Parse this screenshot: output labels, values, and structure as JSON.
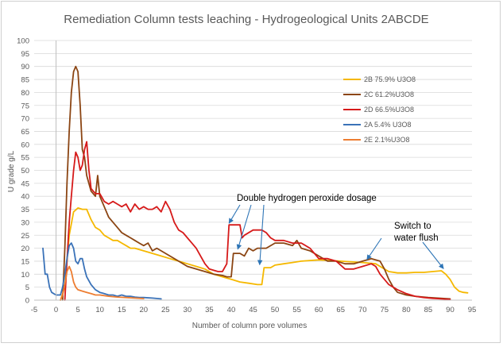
{
  "chart_data": {
    "type": "line",
    "title": "Remediation Column tests leaching - Hydrogeological Units 2ABCDE",
    "xlabel": "Number of column pore volumes",
    "ylabel": "U grade g/L",
    "xlim": [
      -5,
      95
    ],
    "ylim": [
      0,
      100
    ],
    "xticks": [
      -5,
      0,
      5,
      10,
      15,
      20,
      25,
      30,
      35,
      40,
      45,
      50,
      55,
      60,
      65,
      70,
      75,
      80,
      85,
      90,
      95
    ],
    "yticks": [
      0,
      5,
      10,
      15,
      20,
      25,
      30,
      35,
      40,
      45,
      50,
      55,
      60,
      65,
      70,
      75,
      80,
      85,
      90,
      95,
      100
    ],
    "grid": "horizontal",
    "legend_position": "upper-right",
    "series": [
      {
        "name": "2B 75.9% U3O8",
        "color": "#f5b800",
        "points": [
          [
            1,
            0
          ],
          [
            2,
            5
          ],
          [
            3,
            25
          ],
          [
            4,
            34
          ],
          [
            5,
            35.5
          ],
          [
            6,
            35
          ],
          [
            7,
            35
          ],
          [
            8,
            31
          ],
          [
            9,
            28
          ],
          [
            10,
            27
          ],
          [
            11,
            25
          ],
          [
            12,
            24
          ],
          [
            13,
            23
          ],
          [
            14,
            23
          ],
          [
            15,
            22
          ],
          [
            16,
            21
          ],
          [
            17,
            20
          ],
          [
            18,
            20
          ],
          [
            20,
            19
          ],
          [
            22,
            18
          ],
          [
            24,
            17
          ],
          [
            26,
            16
          ],
          [
            28,
            15
          ],
          [
            30,
            14
          ],
          [
            32,
            13
          ],
          [
            34,
            12
          ],
          [
            36,
            10
          ],
          [
            38,
            9
          ],
          [
            40,
            8
          ],
          [
            42,
            7
          ],
          [
            44,
            6.5
          ],
          [
            46,
            6
          ],
          [
            47,
            6
          ],
          [
            47.5,
            12.5
          ],
          [
            49,
            12.5
          ],
          [
            50,
            13.5
          ],
          [
            52,
            14
          ],
          [
            54,
            14.5
          ],
          [
            56,
            15
          ],
          [
            60,
            15.5
          ],
          [
            65,
            15
          ],
          [
            70,
            14.5
          ],
          [
            73,
            14
          ],
          [
            75,
            12
          ],
          [
            76,
            11
          ],
          [
            78,
            10.5
          ],
          [
            80,
            10.5
          ],
          [
            82,
            10.7
          ],
          [
            84,
            10.7
          ],
          [
            86,
            11
          ],
          [
            88,
            11.3
          ],
          [
            89,
            10
          ],
          [
            90,
            8
          ],
          [
            91,
            5
          ],
          [
            92,
            3.5
          ],
          [
            93,
            3
          ],
          [
            94,
            2.8
          ]
        ]
      },
      {
        "name": "2C 61.2%U3O8",
        "color": "#8b4513",
        "points": [
          [
            1.5,
            0
          ],
          [
            2,
            20
          ],
          [
            2.5,
            45
          ],
          [
            3,
            65
          ],
          [
            3.5,
            80
          ],
          [
            4,
            88
          ],
          [
            4.5,
            90
          ],
          [
            5,
            88
          ],
          [
            5.5,
            75
          ],
          [
            6,
            58
          ],
          [
            6.5,
            55
          ],
          [
            7,
            48
          ],
          [
            8,
            42
          ],
          [
            9,
            40
          ],
          [
            9.5,
            48
          ],
          [
            10,
            40
          ],
          [
            11,
            36
          ],
          [
            12,
            32
          ],
          [
            13,
            30
          ],
          [
            14,
            28
          ],
          [
            15,
            26
          ],
          [
            16,
            25
          ],
          [
            17,
            24
          ],
          [
            18,
            23
          ],
          [
            19,
            22
          ],
          [
            20,
            21
          ],
          [
            21,
            22
          ],
          [
            22,
            19
          ],
          [
            23,
            20
          ],
          [
            24,
            19
          ],
          [
            25,
            18
          ],
          [
            26,
            17
          ],
          [
            28,
            15
          ],
          [
            30,
            13
          ],
          [
            32,
            12
          ],
          [
            34,
            11
          ],
          [
            36,
            10
          ],
          [
            38,
            9.5
          ],
          [
            39,
            9
          ],
          [
            40,
            9
          ],
          [
            40.5,
            18
          ],
          [
            42,
            18
          ],
          [
            43,
            17
          ],
          [
            44,
            20
          ],
          [
            45,
            19
          ],
          [
            46,
            20
          ],
          [
            48,
            20
          ],
          [
            50,
            22
          ],
          [
            52,
            22
          ],
          [
            54,
            21
          ],
          [
            55,
            23
          ],
          [
            56,
            20
          ],
          [
            58,
            19
          ],
          [
            60,
            17
          ],
          [
            62,
            15
          ],
          [
            64,
            15
          ],
          [
            66,
            14
          ],
          [
            68,
            14
          ],
          [
            70,
            15
          ],
          [
            72,
            16
          ],
          [
            74,
            15
          ],
          [
            75,
            12
          ],
          [
            76,
            8
          ],
          [
            77,
            5
          ],
          [
            78,
            3
          ],
          [
            80,
            2
          ],
          [
            82,
            1.5
          ],
          [
            85,
            1
          ],
          [
            90,
            0.5
          ]
        ]
      },
      {
        "name": "2D 66.5%U3O8",
        "color": "#d61a1a",
        "points": [
          [
            2,
            0
          ],
          [
            2.5,
            15
          ],
          [
            3,
            30
          ],
          [
            3.5,
            40
          ],
          [
            4,
            50
          ],
          [
            4.5,
            57
          ],
          [
            5,
            55
          ],
          [
            5.5,
            50
          ],
          [
            6,
            52
          ],
          [
            6.5,
            58
          ],
          [
            7,
            61
          ],
          [
            7.5,
            50
          ],
          [
            8,
            43
          ],
          [
            9,
            41
          ],
          [
            10,
            41
          ],
          [
            11,
            38
          ],
          [
            12,
            37
          ],
          [
            13,
            38
          ],
          [
            14,
            37
          ],
          [
            15,
            36
          ],
          [
            16,
            37
          ],
          [
            17,
            34
          ],
          [
            18,
            37
          ],
          [
            19,
            35
          ],
          [
            20,
            36
          ],
          [
            21,
            35
          ],
          [
            22,
            35
          ],
          [
            23,
            36
          ],
          [
            24,
            34
          ],
          [
            25,
            38
          ],
          [
            26,
            35
          ],
          [
            27,
            30
          ],
          [
            28,
            27
          ],
          [
            29,
            26
          ],
          [
            30,
            24
          ],
          [
            31,
            22
          ],
          [
            32,
            20
          ],
          [
            33,
            17
          ],
          [
            34,
            14
          ],
          [
            35,
            12
          ],
          [
            37,
            11
          ],
          [
            38,
            11
          ],
          [
            39,
            14
          ],
          [
            39.5,
            29
          ],
          [
            42,
            29
          ],
          [
            42.5,
            24
          ],
          [
            43,
            25
          ],
          [
            45,
            27
          ],
          [
            47,
            27
          ],
          [
            48,
            26
          ],
          [
            49,
            24
          ],
          [
            50,
            23
          ],
          [
            52,
            23
          ],
          [
            54,
            22
          ],
          [
            56,
            22
          ],
          [
            58,
            20
          ],
          [
            60,
            16
          ],
          [
            62,
            16
          ],
          [
            64,
            15
          ],
          [
            66,
            12
          ],
          [
            68,
            12
          ],
          [
            70,
            13
          ],
          [
            72,
            14
          ],
          [
            73,
            13
          ],
          [
            74,
            10
          ],
          [
            76,
            6
          ],
          [
            78,
            4
          ],
          [
            80,
            2.5
          ],
          [
            82,
            1.5
          ],
          [
            84,
            1
          ],
          [
            86,
            0.7
          ],
          [
            88,
            0.5
          ],
          [
            90,
            0.3
          ]
        ]
      },
      {
        "name": "2A 5.4% U3O8",
        "color": "#3a72b8",
        "points": [
          [
            -3,
            20
          ],
          [
            -2.5,
            10
          ],
          [
            -2,
            10
          ],
          [
            -1.5,
            5
          ],
          [
            -1,
            3
          ],
          [
            0,
            2
          ],
          [
            1,
            2
          ],
          [
            1.5,
            5
          ],
          [
            2,
            10
          ],
          [
            2.5,
            16
          ],
          [
            3,
            21
          ],
          [
            3.5,
            22
          ],
          [
            4,
            20
          ],
          [
            4.5,
            15
          ],
          [
            5,
            14
          ],
          [
            5.5,
            16
          ],
          [
            6,
            16
          ],
          [
            6.5,
            12
          ],
          [
            7,
            9
          ],
          [
            8,
            6
          ],
          [
            9,
            4
          ],
          [
            10,
            3
          ],
          [
            11,
            2.5
          ],
          [
            12,
            2
          ],
          [
            13,
            2
          ],
          [
            14,
            1.5
          ],
          [
            15,
            2
          ],
          [
            16,
            1.5
          ],
          [
            17,
            1.5
          ],
          [
            18,
            1.2
          ],
          [
            19,
            1
          ],
          [
            20,
            1
          ],
          [
            22,
            0.8
          ],
          [
            24,
            0.5
          ]
        ]
      },
      {
        "name": "2E 2.1%U3O8",
        "color": "#ed7d31",
        "points": [
          [
            1,
            0
          ],
          [
            1.5,
            2
          ],
          [
            2,
            6
          ],
          [
            2.5,
            11
          ],
          [
            3,
            13
          ],
          [
            3.5,
            11
          ],
          [
            4,
            7
          ],
          [
            4.5,
            5
          ],
          [
            5,
            4
          ],
          [
            6,
            3.5
          ],
          [
            7,
            3
          ],
          [
            8,
            2.5
          ],
          [
            9,
            2
          ],
          [
            10,
            2
          ],
          [
            12,
            1.5
          ],
          [
            14,
            1.2
          ],
          [
            16,
            1
          ],
          [
            18,
            0.8
          ],
          [
            20,
            0.6
          ]
        ]
      }
    ],
    "annotations": [
      {
        "id": "dosage",
        "text": "Double hydrogen peroxide dosage",
        "arrows_to": [
          [
            39.5,
            29
          ],
          [
            41.5,
            19
          ],
          [
            46.5,
            13
          ]
        ]
      },
      {
        "id": "flush",
        "text": [
          "Switch to",
          "water flush"
        ],
        "arrows_to": [
          [
            71,
            15
          ],
          [
            88.5,
            11.5
          ]
        ]
      }
    ]
  }
}
